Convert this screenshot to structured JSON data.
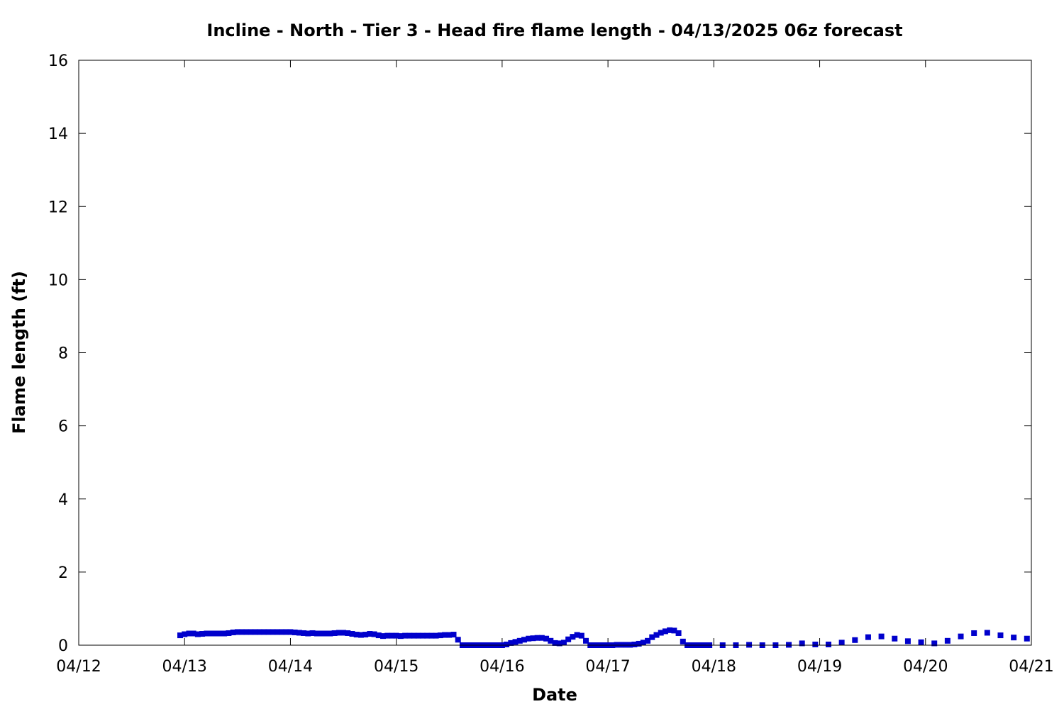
{
  "chart_data": {
    "type": "scatter",
    "title": "Incline - North - Tier 3 - Head fire flame length - 04/13/2025 06z forecast",
    "xlabel": "Date",
    "ylabel": "Flame length (ft)",
    "x_ticks": [
      "04/12",
      "04/13",
      "04/14",
      "04/15",
      "04/16",
      "04/17",
      "04/18",
      "04/19",
      "04/20",
      "04/21"
    ],
    "y_ticks": [
      "0",
      "2",
      "4",
      "6",
      "8",
      "10",
      "12",
      "14",
      "16"
    ],
    "xlim": [
      "2025-04-12 00:00",
      "2025-04-21 00:00"
    ],
    "ylim": [
      0,
      16
    ],
    "grid": false,
    "legend": "none",
    "marker_color": "#0000cc",
    "series": [
      {
        "hourly_points": [
          [
            "2025-04-12 23:00",
            0.27
          ],
          [
            "2025-04-13 00:00",
            0.3
          ],
          [
            "2025-04-13 01:00",
            0.32
          ],
          [
            "2025-04-13 02:00",
            0.32
          ],
          [
            "2025-04-13 03:00",
            0.3
          ],
          [
            "2025-04-13 04:00",
            0.31
          ],
          [
            "2025-04-13 05:00",
            0.32
          ],
          [
            "2025-04-13 06:00",
            0.32
          ],
          [
            "2025-04-13 07:00",
            0.32
          ],
          [
            "2025-04-13 08:00",
            0.32
          ],
          [
            "2025-04-13 09:00",
            0.32
          ],
          [
            "2025-04-13 10:00",
            0.33
          ],
          [
            "2025-04-13 11:00",
            0.35
          ],
          [
            "2025-04-13 12:00",
            0.36
          ],
          [
            "2025-04-13 13:00",
            0.36
          ],
          [
            "2025-04-13 14:00",
            0.36
          ],
          [
            "2025-04-13 15:00",
            0.36
          ],
          [
            "2025-04-13 16:00",
            0.36
          ],
          [
            "2025-04-13 17:00",
            0.36
          ],
          [
            "2025-04-13 18:00",
            0.36
          ],
          [
            "2025-04-13 19:00",
            0.36
          ],
          [
            "2025-04-13 20:00",
            0.36
          ],
          [
            "2025-04-13 21:00",
            0.36
          ],
          [
            "2025-04-13 22:00",
            0.36
          ],
          [
            "2025-04-13 23:00",
            0.36
          ],
          [
            "2025-04-14 00:00",
            0.36
          ],
          [
            "2025-04-14 01:00",
            0.35
          ],
          [
            "2025-04-14 02:00",
            0.34
          ],
          [
            "2025-04-14 03:00",
            0.33
          ],
          [
            "2025-04-14 04:00",
            0.32
          ],
          [
            "2025-04-14 05:00",
            0.33
          ],
          [
            "2025-04-14 06:00",
            0.32
          ],
          [
            "2025-04-14 07:00",
            0.32
          ],
          [
            "2025-04-14 08:00",
            0.32
          ],
          [
            "2025-04-14 09:00",
            0.32
          ],
          [
            "2025-04-14 10:00",
            0.33
          ],
          [
            "2025-04-14 11:00",
            0.34
          ],
          [
            "2025-04-14 12:00",
            0.34
          ],
          [
            "2025-04-14 13:00",
            0.33
          ],
          [
            "2025-04-14 14:00",
            0.31
          ],
          [
            "2025-04-14 15:00",
            0.29
          ],
          [
            "2025-04-14 16:00",
            0.28
          ],
          [
            "2025-04-14 17:00",
            0.29
          ],
          [
            "2025-04-14 18:00",
            0.31
          ],
          [
            "2025-04-14 19:00",
            0.3
          ],
          [
            "2025-04-14 20:00",
            0.27
          ],
          [
            "2025-04-14 21:00",
            0.25
          ],
          [
            "2025-04-14 22:00",
            0.26
          ],
          [
            "2025-04-14 23:00",
            0.26
          ],
          [
            "2025-04-15 00:00",
            0.26
          ],
          [
            "2025-04-15 01:00",
            0.25
          ],
          [
            "2025-04-15 02:00",
            0.26
          ],
          [
            "2025-04-15 03:00",
            0.26
          ],
          [
            "2025-04-15 04:00",
            0.26
          ],
          [
            "2025-04-15 05:00",
            0.26
          ],
          [
            "2025-04-15 06:00",
            0.26
          ],
          [
            "2025-04-15 07:00",
            0.26
          ],
          [
            "2025-04-15 08:00",
            0.26
          ],
          [
            "2025-04-15 09:00",
            0.26
          ],
          [
            "2025-04-15 10:00",
            0.27
          ],
          [
            "2025-04-15 11:00",
            0.28
          ],
          [
            "2025-04-15 12:00",
            0.28
          ],
          [
            "2025-04-15 13:00",
            0.29
          ],
          [
            "2025-04-15 14:00",
            0.15
          ],
          [
            "2025-04-15 15:00",
            0.0
          ],
          [
            "2025-04-15 16:00",
            0.0
          ],
          [
            "2025-04-15 17:00",
            0.0
          ],
          [
            "2025-04-15 18:00",
            0.0
          ],
          [
            "2025-04-15 19:00",
            0.0
          ],
          [
            "2025-04-15 20:00",
            0.0
          ],
          [
            "2025-04-15 21:00",
            0.0
          ],
          [
            "2025-04-15 22:00",
            0.0
          ],
          [
            "2025-04-15 23:00",
            0.0
          ],
          [
            "2025-04-16 00:00",
            0.0
          ],
          [
            "2025-04-16 01:00",
            0.02
          ],
          [
            "2025-04-16 02:00",
            0.06
          ],
          [
            "2025-04-16 03:00",
            0.09
          ],
          [
            "2025-04-16 04:00",
            0.12
          ],
          [
            "2025-04-16 05:00",
            0.15
          ],
          [
            "2025-04-16 06:00",
            0.18
          ],
          [
            "2025-04-16 07:00",
            0.19
          ],
          [
            "2025-04-16 08:00",
            0.2
          ],
          [
            "2025-04-16 09:00",
            0.2
          ],
          [
            "2025-04-16 10:00",
            0.18
          ],
          [
            "2025-04-16 11:00",
            0.12
          ],
          [
            "2025-04-16 12:00",
            0.06
          ],
          [
            "2025-04-16 13:00",
            0.05
          ],
          [
            "2025-04-16 14:00",
            0.07
          ],
          [
            "2025-04-16 15:00",
            0.16
          ],
          [
            "2025-04-16 16:00",
            0.23
          ],
          [
            "2025-04-16 17:00",
            0.28
          ],
          [
            "2025-04-16 18:00",
            0.26
          ],
          [
            "2025-04-16 19:00",
            0.12
          ],
          [
            "2025-04-16 20:00",
            0.0
          ],
          [
            "2025-04-16 21:00",
            0.0
          ],
          [
            "2025-04-16 22:00",
            0.0
          ],
          [
            "2025-04-16 23:00",
            0.0
          ],
          [
            "2025-04-17 00:00",
            0.0
          ],
          [
            "2025-04-17 01:00",
            0.0
          ],
          [
            "2025-04-17 02:00",
            0.01
          ],
          [
            "2025-04-17 03:00",
            0.01
          ],
          [
            "2025-04-17 04:00",
            0.01
          ],
          [
            "2025-04-17 05:00",
            0.01
          ],
          [
            "2025-04-17 06:00",
            0.02
          ],
          [
            "2025-04-17 07:00",
            0.04
          ],
          [
            "2025-04-17 08:00",
            0.07
          ],
          [
            "2025-04-17 09:00",
            0.12
          ],
          [
            "2025-04-17 10:00",
            0.22
          ],
          [
            "2025-04-17 11:00",
            0.28
          ],
          [
            "2025-04-17 12:00",
            0.34
          ],
          [
            "2025-04-17 13:00",
            0.38
          ],
          [
            "2025-04-17 14:00",
            0.41
          ],
          [
            "2025-04-17 15:00",
            0.4
          ],
          [
            "2025-04-17 16:00",
            0.33
          ],
          [
            "2025-04-17 17:00",
            0.1
          ],
          [
            "2025-04-17 18:00",
            0.0
          ],
          [
            "2025-04-17 19:00",
            0.0
          ],
          [
            "2025-04-17 20:00",
            0.0
          ],
          [
            "2025-04-17 21:00",
            0.0
          ],
          [
            "2025-04-17 22:00",
            0.0
          ],
          [
            "2025-04-17 23:00",
            0.0
          ]
        ]
      },
      {
        "three_hourly_points": [
          [
            "2025-04-18 02:00",
            0.0
          ],
          [
            "2025-04-18 05:00",
            0.0
          ],
          [
            "2025-04-18 08:00",
            0.01
          ],
          [
            "2025-04-18 11:00",
            0.0
          ],
          [
            "2025-04-18 14:00",
            0.0
          ],
          [
            "2025-04-18 17:00",
            0.01
          ],
          [
            "2025-04-18 20:00",
            0.05
          ],
          [
            "2025-04-18 23:00",
            0.02
          ],
          [
            "2025-04-19 02:00",
            0.02
          ],
          [
            "2025-04-19 05:00",
            0.07
          ],
          [
            "2025-04-19 08:00",
            0.14
          ],
          [
            "2025-04-19 11:00",
            0.22
          ],
          [
            "2025-04-19 14:00",
            0.24
          ],
          [
            "2025-04-19 17:00",
            0.18
          ],
          [
            "2025-04-19 20:00",
            0.11
          ],
          [
            "2025-04-19 23:00",
            0.08
          ],
          [
            "2025-04-20 02:00",
            0.05
          ],
          [
            "2025-04-20 05:00",
            0.12
          ],
          [
            "2025-04-20 08:00",
            0.24
          ],
          [
            "2025-04-20 11:00",
            0.33
          ],
          [
            "2025-04-20 14:00",
            0.34
          ],
          [
            "2025-04-20 17:00",
            0.27
          ],
          [
            "2025-04-20 20:00",
            0.21
          ],
          [
            "2025-04-20 23:00",
            0.18
          ]
        ]
      }
    ]
  }
}
